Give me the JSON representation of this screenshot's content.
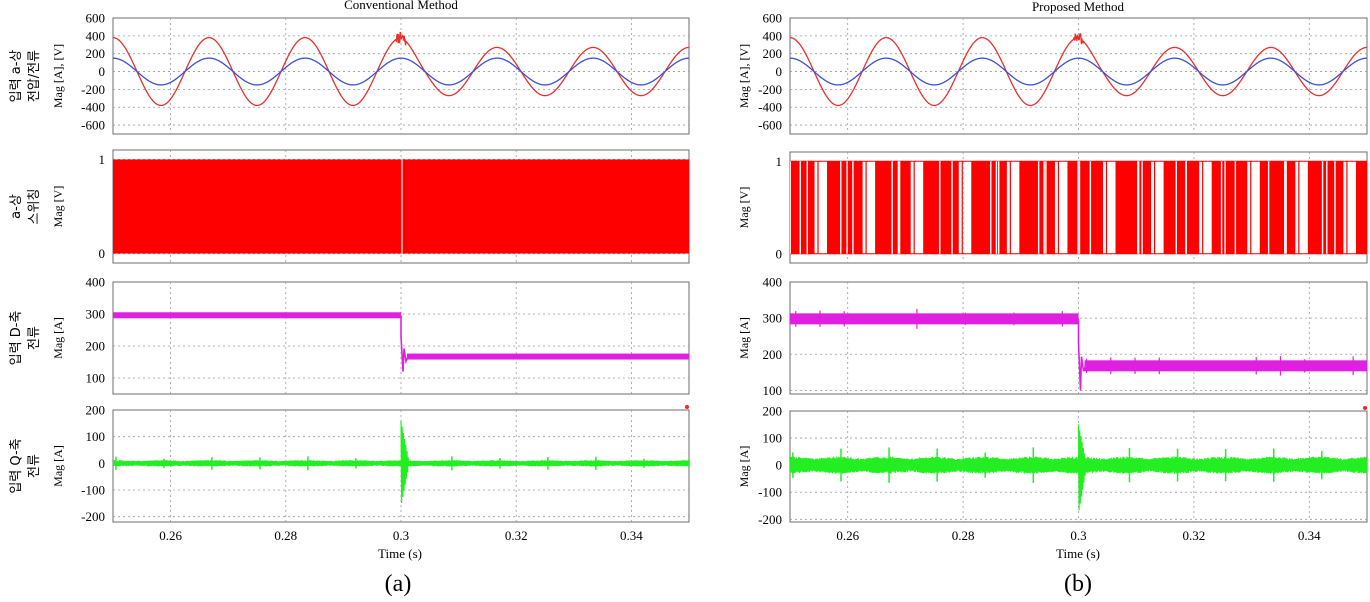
{
  "subfigures": [
    {
      "label": "(a)",
      "title": "Conventional Method",
      "xlabel": "Time (s)",
      "xticks": [
        "0.26",
        "0.28",
        "0.3",
        "0.32",
        "0.34"
      ]
    },
    {
      "label": "(b)",
      "title": "Proposed Method",
      "xlabel": "Time (s)",
      "xticks": [
        "0.26",
        "0.28",
        "0.3",
        "0.32",
        "0.34"
      ]
    }
  ],
  "rows": [
    {
      "korean_label": [
        "입력 a-상",
        "전압/전류"
      ],
      "ylabel": "Mag [A], [V]",
      "yticks": [
        "600",
        "400",
        "200",
        "0",
        "-200",
        "-400",
        "-600"
      ]
    },
    {
      "korean_label": [
        "a-상",
        "스위칭"
      ],
      "ylabel": "Mag [V]",
      "yticks": [
        "1",
        "0"
      ]
    },
    {
      "korean_label": [
        "입력 D-축",
        "전류"
      ],
      "ylabel": "Mag [A]",
      "yticks": [
        "400",
        "300",
        "200",
        "100"
      ]
    },
    {
      "korean_label": [
        "입력 Q-축",
        "전류"
      ],
      "ylabel": "Mag [A]",
      "yticks": [
        "200",
        "100",
        "0",
        "-100",
        "-200"
      ]
    }
  ],
  "chart_data": [
    {
      "type": "line",
      "subfigure": "(a)",
      "title": "Conventional Method",
      "xlabel": "Time (s)",
      "xlim": [
        0.25,
        0.35
      ],
      "grid": true,
      "panels": [
        {
          "ylabel": "Mag [A], [V]",
          "ylim": [
            -700,
            600
          ],
          "series": [
            {
              "color": "#e8302c",
              "kind": "sine",
              "amplitude_before": 380,
              "amplitude_after": 270,
              "step_time": 0.3,
              "frequency_hz": 60
            },
            {
              "color": "#3a4fd8",
              "kind": "sine",
              "amplitude": 150,
              "frequency_hz": 60
            }
          ]
        },
        {
          "ylabel": "Mag [V]",
          "ylim": [
            -0.1,
            1.1
          ],
          "series": [
            {
              "color": "#ff0000",
              "kind": "pwm_switching",
              "levels": [
                0,
                1
              ],
              "pattern": "continuous"
            }
          ]
        },
        {
          "ylabel": "Mag [A]",
          "ylim": [
            50,
            400
          ],
          "series": [
            {
              "color": "#e020e0",
              "kind": "step",
              "value_before": 296,
              "value_after": 167,
              "step_time": 0.3,
              "ripple": 3,
              "transient_min": 120,
              "transient_max": 230
            }
          ]
        },
        {
          "ylabel": "Mag [A]",
          "ylim": [
            -220,
            200
          ],
          "series": [
            {
              "color": "#22ee22",
              "kind": "ripple_band",
              "mean": 0,
              "amplitude": 12,
              "spike_time": 0.3,
              "spike_max": 160,
              "spike_min": -160
            }
          ]
        }
      ]
    },
    {
      "type": "line",
      "subfigure": "(b)",
      "title": "Proposed Method",
      "xlabel": "Time (s)",
      "xlim": [
        0.25,
        0.35
      ],
      "grid": true,
      "panels": [
        {
          "ylabel": "Mag [A], [V]",
          "ylim": [
            -700,
            600
          ],
          "series": [
            {
              "color": "#e8302c",
              "kind": "sine",
              "amplitude_before": 380,
              "amplitude_after": 270,
              "step_time": 0.3,
              "frequency_hz": 60
            },
            {
              "color": "#3a4fd8",
              "kind": "sine",
              "amplitude": 150,
              "frequency_hz": 60
            }
          ]
        },
        {
          "ylabel": "Mag [V]",
          "ylim": [
            -0.1,
            1.1
          ],
          "series": [
            {
              "color": "#ff0000",
              "kind": "pwm_switching",
              "levels": [
                0,
                1
              ],
              "pattern": "blocks"
            }
          ]
        },
        {
          "ylabel": "Mag [A]",
          "ylim": [
            90,
            400
          ],
          "series": [
            {
              "color": "#e020e0",
              "kind": "step",
              "value_before": 298,
              "value_after": 168,
              "step_time": 0.3,
              "ripple": 8,
              "transient_min": 100,
              "transient_max": 230
            }
          ]
        },
        {
          "ylabel": "Mag [A]",
          "ylim": [
            -210,
            200
          ],
          "series": [
            {
              "color": "#22ee22",
              "kind": "ripple_band",
              "mean": 0,
              "amplitude": 32,
              "spike_time": 0.3,
              "spike_max": 150,
              "spike_min": -180
            }
          ]
        }
      ]
    }
  ]
}
